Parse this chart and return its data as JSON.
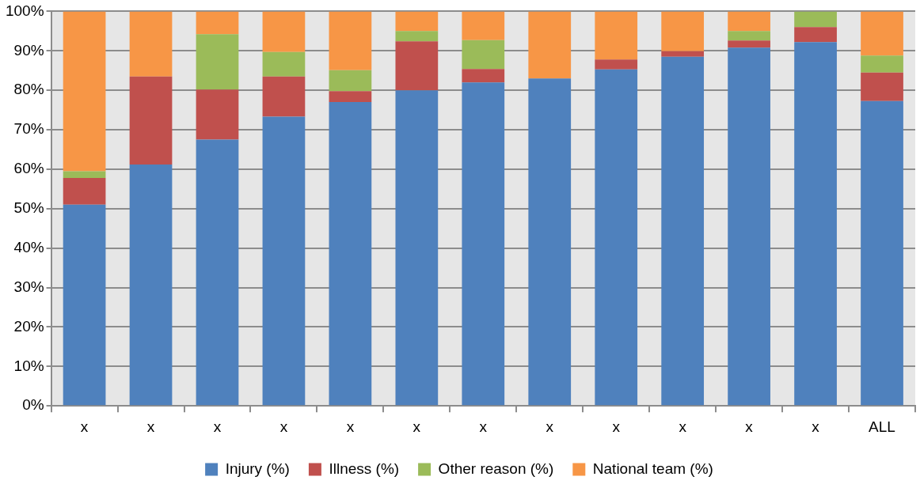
{
  "chart_data": {
    "type": "bar",
    "stacked": true,
    "categories": [
      "x",
      "x",
      "x",
      "x",
      "x",
      "x",
      "x",
      "x",
      "x",
      "x",
      "x",
      "x",
      "ALL"
    ],
    "series": [
      {
        "name": "Injury (%)",
        "color": "#4f81bd",
        "values": [
          51,
          61.2,
          67.5,
          73.3,
          77,
          80,
          82,
          83,
          85.3,
          88.5,
          90.8,
          92.2,
          77.3
        ]
      },
      {
        "name": "Illness (%)",
        "color": "#c0504d",
        "values": [
          6.8,
          22.3,
          12.7,
          10.2,
          2.8,
          12.4,
          3.4,
          0,
          2.5,
          1.4,
          1.8,
          3.8,
          7.2
        ]
      },
      {
        "name": "Other reason (%)",
        "color": "#9bbb59",
        "values": [
          1.7,
          0,
          14,
          6.2,
          5.3,
          2.6,
          7.3,
          0,
          0,
          0,
          2.4,
          4,
          4.3
        ]
      },
      {
        "name": "National team (%)",
        "color": "#f79646",
        "values": [
          40.5,
          16.5,
          5.8,
          10.3,
          14.9,
          5,
          7.3,
          17,
          12.2,
          10.1,
          5,
          0,
          11.2
        ]
      }
    ],
    "ylim": [
      0,
      100
    ],
    "yticks": [
      {
        "value": 0,
        "label": "0%"
      },
      {
        "value": 10,
        "label": "10%"
      },
      {
        "value": 20,
        "label": "20%"
      },
      {
        "value": 30,
        "label": "30%"
      },
      {
        "value": 40,
        "label": "40%"
      },
      {
        "value": 50,
        "label": "50%"
      },
      {
        "value": 60,
        "label": "60%"
      },
      {
        "value": 70,
        "label": "70%"
      },
      {
        "value": 80,
        "label": "80%"
      },
      {
        "value": 90,
        "label": "90%"
      },
      {
        "value": 100,
        "label": "100%"
      }
    ],
    "grid": "y",
    "legend": "bottom"
  }
}
